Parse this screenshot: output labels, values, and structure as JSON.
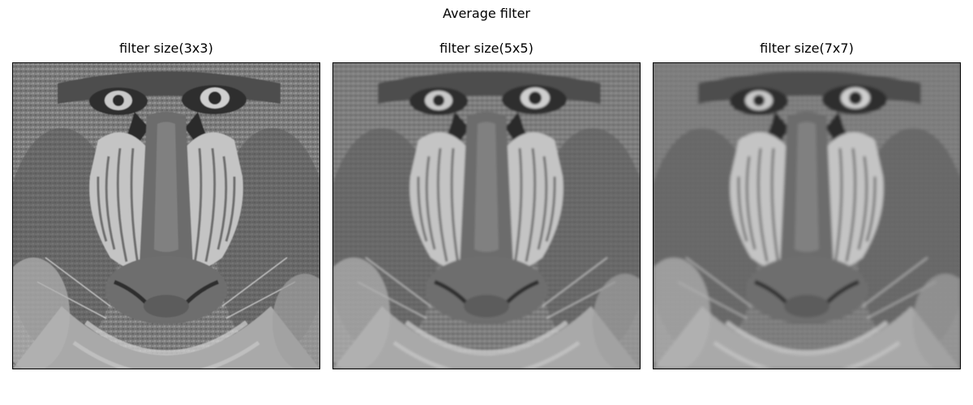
{
  "figure": {
    "suptitle": "Average filter"
  },
  "panels": [
    {
      "title": "filter size(3x3)",
      "kernel_size": 3
    },
    {
      "title": "filter size(5x5)",
      "kernel_size": 5
    },
    {
      "title": "filter size(7x7)",
      "kernel_size": 7
    }
  ],
  "image": {
    "subject": "grayscale mandrill (baboon) face",
    "colormap": "gray"
  }
}
